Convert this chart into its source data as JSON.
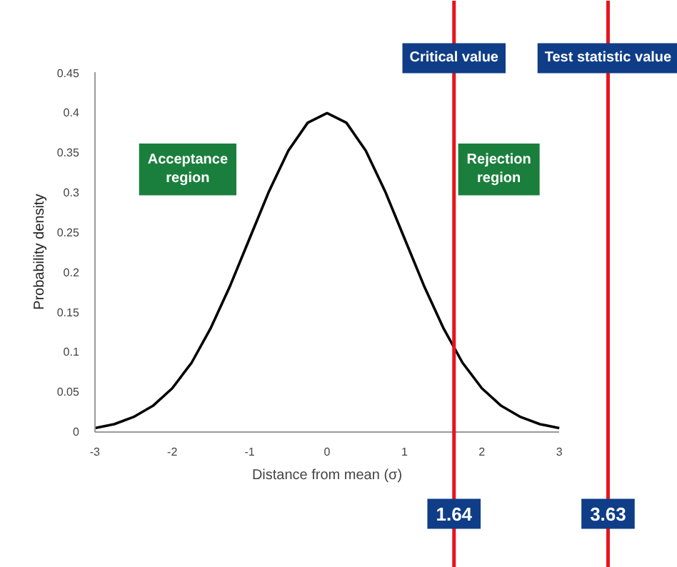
{
  "chart_data": {
    "type": "line",
    "xlabel": "Distance from mean (σ)",
    "ylabel": "Probability density",
    "x": [
      -3,
      -2.75,
      -2.5,
      -2.25,
      -2,
      -1.75,
      -1.5,
      -1.25,
      -1,
      -0.75,
      -0.5,
      -0.25,
      0,
      0.25,
      0.5,
      0.75,
      1,
      1.25,
      1.5,
      1.75,
      2,
      2.25,
      2.5,
      2.75,
      3
    ],
    "series": [
      {
        "color": "#000000",
        "values": [
          0.004,
          0.009,
          0.018,
          0.032,
          0.054,
          0.086,
          0.13,
          0.183,
          0.242,
          0.301,
          0.352,
          0.387,
          0.399,
          0.387,
          0.352,
          0.301,
          0.242,
          0.183,
          0.13,
          0.086,
          0.054,
          0.032,
          0.018,
          0.009,
          0.004
        ]
      }
    ],
    "xlim": [
      -3,
      3
    ],
    "xticks": [
      -3,
      -2,
      -1,
      0,
      1,
      2,
      3
    ],
    "ylim": [
      0,
      0.45
    ],
    "yticks": [
      0,
      0.05,
      0.1,
      0.15,
      0.2,
      0.25,
      0.3,
      0.35,
      0.4,
      0.45
    ],
    "grid": false,
    "marker": "none",
    "line_style": "solid",
    "ref_lines": [
      {
        "axis": "x",
        "value": 1.64,
        "label": "Critical value",
        "color": "#e8141c"
      },
      {
        "axis": "x",
        "value": 3.63,
        "label": "Test statistic value",
        "color": "#e8141c"
      }
    ],
    "annotations": [
      "Acceptance\nregion",
      "Rejection\nregion",
      {
        "text": "1.64",
        "x": 1.64
      },
      {
        "text": "3.63",
        "x": 3.63
      }
    ]
  }
}
